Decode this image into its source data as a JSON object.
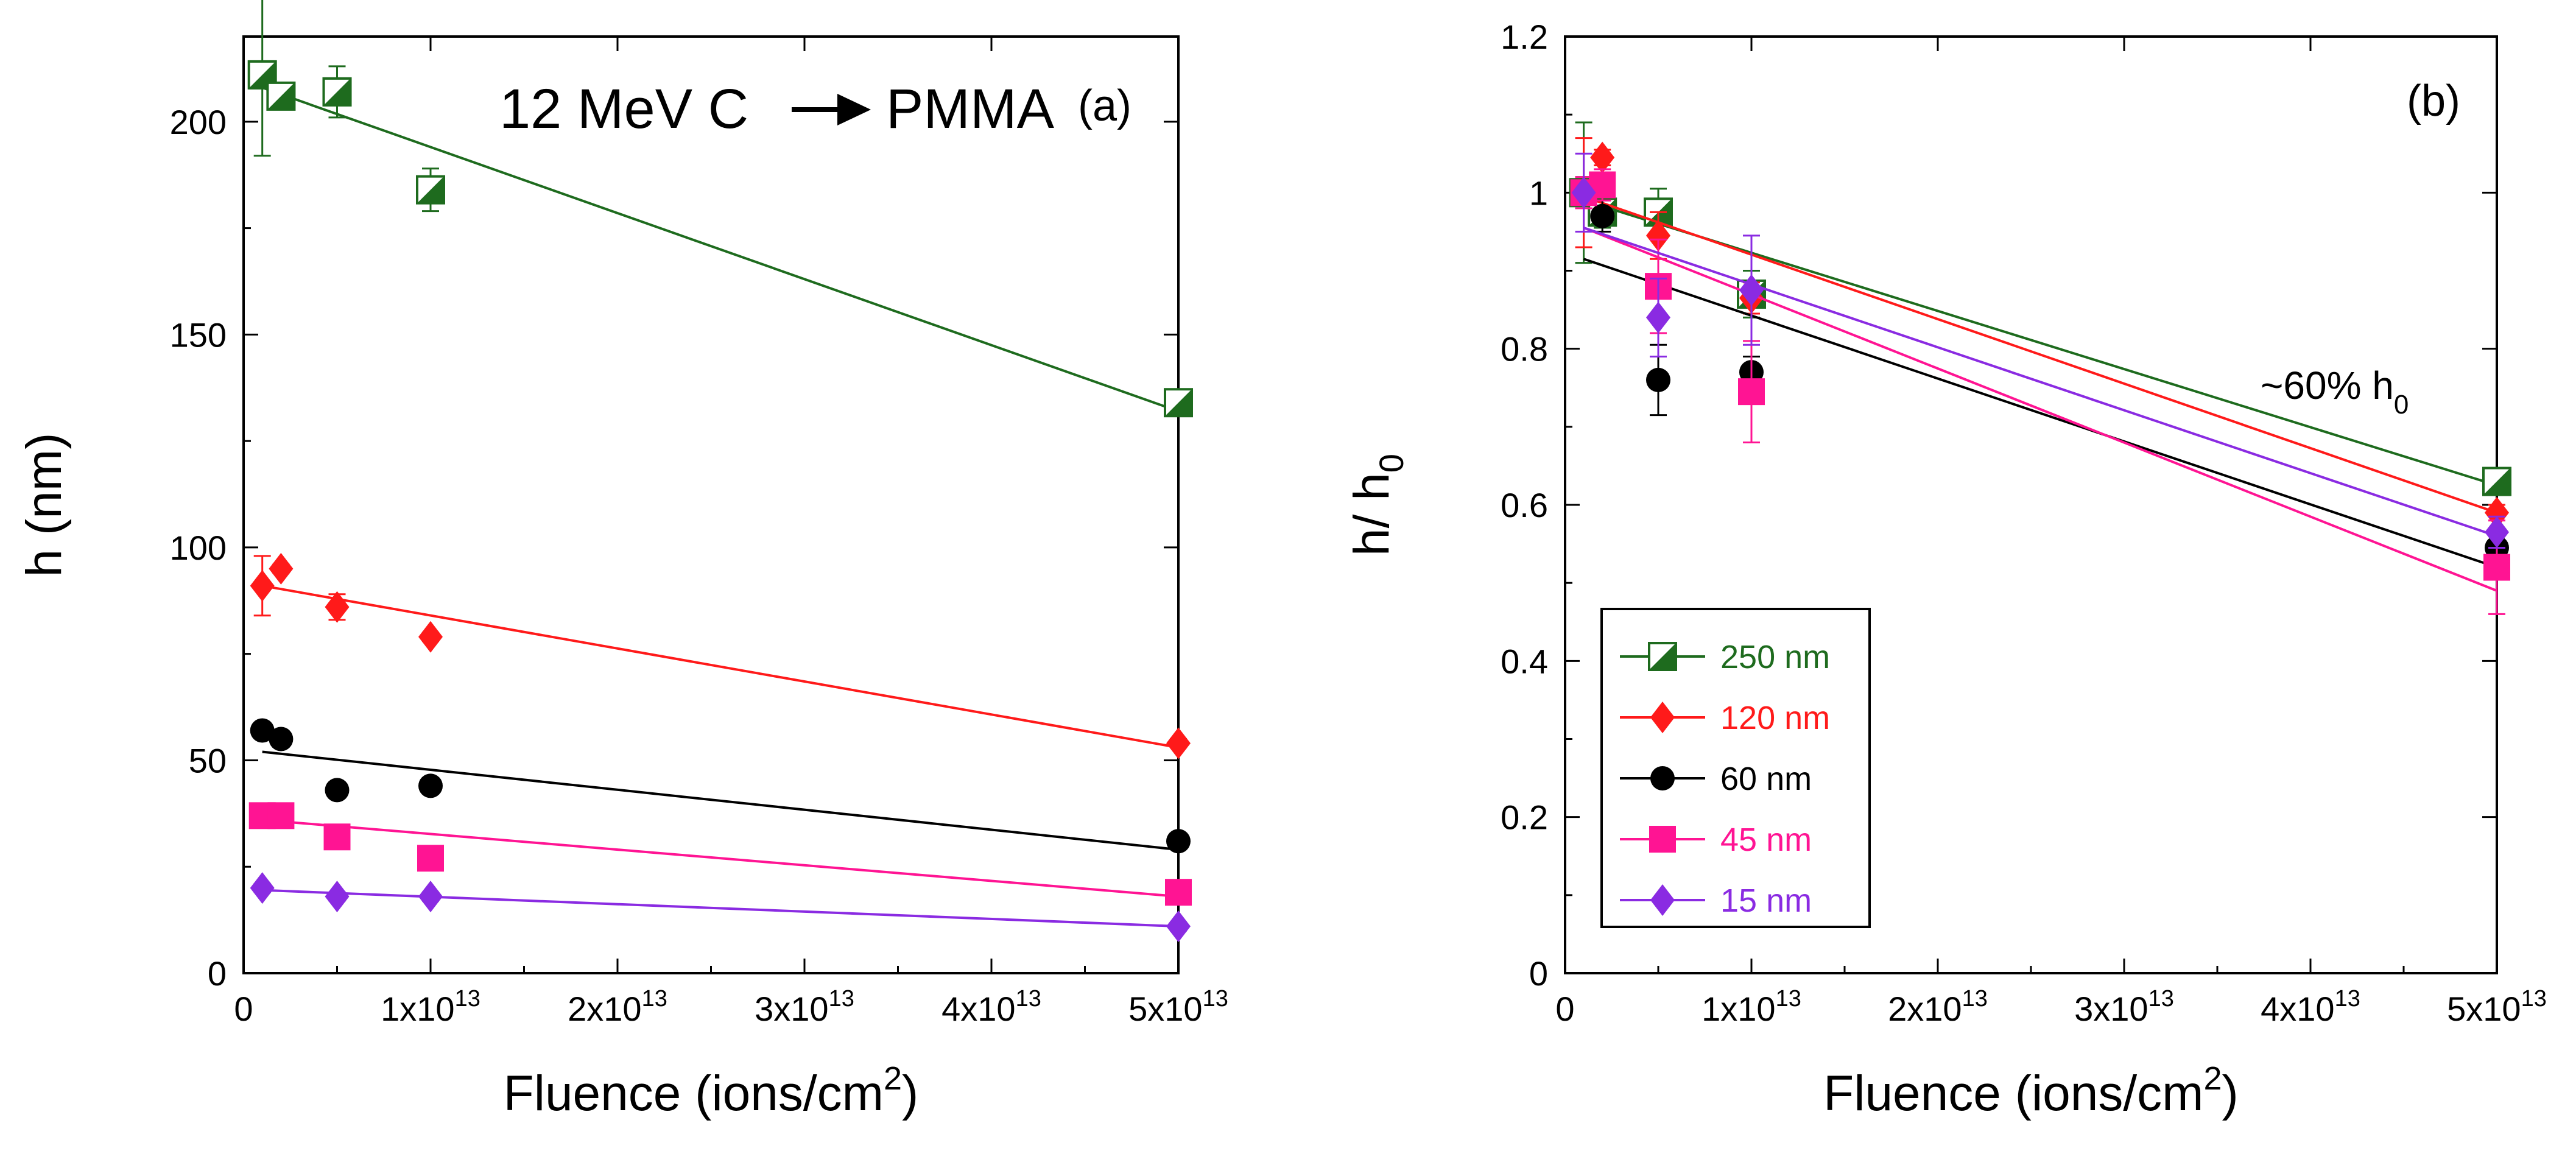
{
  "chart_data": [
    {
      "id": "a",
      "type": "scatter",
      "panel_label": "(a)",
      "annotation": {
        "prefix": "12 MeV C",
        "suffix": "PMMA"
      },
      "xlabel": {
        "text": "Fluence (ions/cm",
        "sup": "2",
        "close": ")"
      },
      "ylabel": "h (nm)",
      "xlim": [
        0,
        50000000000000.0
      ],
      "ylim": [
        0,
        220
      ],
      "xticks": [
        0,
        10000000000000.0,
        20000000000000.0,
        30000000000000.0,
        40000000000000.0,
        50000000000000.0
      ],
      "xtick_labels": [
        "0",
        "1x10^13",
        "2x10^13",
        "3x10^13",
        "4x10^13",
        "5x10^13"
      ],
      "yticks": [
        0,
        50,
        100,
        150,
        200
      ],
      "ytick_labels": [
        "0",
        "50",
        "100",
        "150",
        "200"
      ],
      "series": [
        {
          "name": "250 nm",
          "color": "#1e6b1e",
          "marker": "half-square",
          "points": [
            [
              1000000000000.0,
              211,
              19
            ],
            [
              2000000000000.0,
              206,
              2
            ],
            [
              5000000000000.0,
              207,
              6
            ],
            [
              10000000000000.0,
              184,
              5
            ],
            [
              50000000000000.0,
              134,
              1
            ]
          ],
          "fit": [
            [
              1000000000000.0,
              208
            ],
            [
              50000000000000.0,
              132
            ]
          ]
        },
        {
          "name": "120 nm",
          "color": "#ff1a1a",
          "marker": "diamond",
          "points": [
            [
              1000000000000.0,
              91,
              7
            ],
            [
              2000000000000.0,
              95,
              1
            ],
            [
              5000000000000.0,
              86,
              3
            ],
            [
              10000000000000.0,
              79,
              1
            ],
            [
              50000000000000.0,
              54,
              1
            ]
          ],
          "fit": [
            [
              1000000000000.0,
              91
            ],
            [
              50000000000000.0,
              53
            ]
          ]
        },
        {
          "name": "60 nm",
          "color": "#000000",
          "marker": "circle",
          "points": [
            [
              1000000000000.0,
              57,
              1
            ],
            [
              2000000000000.0,
              55,
              1
            ],
            [
              5000000000000.0,
              43,
              1
            ],
            [
              10000000000000.0,
              44,
              1
            ],
            [
              50000000000000.0,
              31,
              1
            ]
          ],
          "fit": [
            [
              1000000000000.0,
              52
            ],
            [
              50000000000000.0,
              29
            ]
          ]
        },
        {
          "name": "45 nm",
          "color": "#ff1493",
          "marker": "square",
          "points": [
            [
              1000000000000.0,
              37,
              1
            ],
            [
              2000000000000.0,
              37,
              1
            ],
            [
              5000000000000.0,
              32,
              1
            ],
            [
              10000000000000.0,
              27,
              1
            ],
            [
              50000000000000.0,
              19,
              1
            ]
          ],
          "fit": [
            [
              1000000000000.0,
              36
            ],
            [
              50000000000000.0,
              18
            ]
          ]
        },
        {
          "name": "15 nm",
          "color": "#8a2be2",
          "marker": "diamond",
          "points": [
            [
              1000000000000.0,
              20,
              1
            ],
            [
              5000000000000.0,
              18,
              1
            ],
            [
              10000000000000.0,
              18,
              1
            ],
            [
              50000000000000.0,
              11,
              1
            ]
          ],
          "fit": [
            [
              1000000000000.0,
              19.5
            ],
            [
              50000000000000.0,
              11
            ]
          ]
        }
      ]
    },
    {
      "id": "b",
      "type": "scatter",
      "panel_label": "(b)",
      "annotation": {
        "text": "~60% h",
        "sub": "0"
      },
      "xlabel": {
        "text": "Fluence (ions/cm",
        "sup": "2",
        "close": ")"
      },
      "ylabel": {
        "text": "h/ h",
        "sub": "0"
      },
      "xlim": [
        0,
        50000000000000.0
      ],
      "ylim": [
        0,
        1.2
      ],
      "xticks": [
        0,
        10000000000000.0,
        20000000000000.0,
        30000000000000.0,
        40000000000000.0,
        50000000000000.0
      ],
      "xtick_labels": [
        "0",
        "1x10^13",
        "2x10^13",
        "3x10^13",
        "4x10^13",
        "5x10^13"
      ],
      "yticks": [
        0,
        0.2,
        0.4,
        0.6,
        0.8,
        1.0,
        1.2
      ],
      "ytick_labels": [
        "0",
        "0.2",
        "0.4",
        "0.6",
        "0.8",
        "1",
        "1.2"
      ],
      "legend_position": "bottom-left",
      "series": [
        {
          "name": "250 nm",
          "color": "#1e6b1e",
          "marker": "half-square",
          "points": [
            [
              1000000000000.0,
              1.0,
              0.09
            ],
            [
              2000000000000.0,
              0.975,
              0.02
            ],
            [
              5000000000000.0,
              0.975,
              0.03
            ],
            [
              10000000000000.0,
              0.87,
              0.03
            ],
            [
              50000000000000.0,
              0.63,
              0.01
            ]
          ],
          "fit": [
            [
              1000000000000.0,
              0.99
            ],
            [
              50000000000000.0,
              0.625
            ]
          ]
        },
        {
          "name": "120 nm",
          "color": "#ff1a1a",
          "marker": "diamond",
          "points": [
            [
              1000000000000.0,
              1.0,
              0.07
            ],
            [
              2000000000000.0,
              1.045,
              0.01
            ],
            [
              5000000000000.0,
              0.945,
              0.03
            ],
            [
              10000000000000.0,
              0.865,
              0.02
            ],
            [
              50000000000000.0,
              0.59,
              0.01
            ]
          ],
          "fit": [
            [
              1000000000000.0,
              0.995
            ],
            [
              50000000000000.0,
              0.59
            ]
          ]
        },
        {
          "name": "60 nm",
          "color": "#000000",
          "marker": "circle",
          "points": [
            [
              1000000000000.0,
              1.0,
              0.02
            ],
            [
              2000000000000.0,
              0.97,
              0.02
            ],
            [
              5000000000000.0,
              0.76,
              0.045
            ],
            [
              10000000000000.0,
              0.77,
              0.02
            ],
            [
              50000000000000.0,
              0.545,
              0.02
            ]
          ],
          "fit": [
            [
              1000000000000.0,
              0.915
            ],
            [
              50000000000000.0,
              0.52
            ]
          ]
        },
        {
          "name": "45 nm",
          "color": "#ff1493",
          "marker": "square",
          "points": [
            [
              1000000000000.0,
              1.0,
              0.02
            ],
            [
              2000000000000.0,
              1.01,
              0.02
            ],
            [
              5000000000000.0,
              0.88,
              0.06
            ],
            [
              10000000000000.0,
              0.745,
              0.065
            ],
            [
              50000000000000.0,
              0.52,
              0.06
            ]
          ],
          "fit": [
            [
              1000000000000.0,
              0.955
            ],
            [
              50000000000000.0,
              0.49
            ]
          ]
        },
        {
          "name": "15 nm",
          "color": "#8a2be2",
          "marker": "diamond",
          "points": [
            [
              1000000000000.0,
              1.0,
              0.05
            ],
            [
              5000000000000.0,
              0.84,
              0.05
            ],
            [
              10000000000000.0,
              0.875,
              0.07
            ],
            [
              50000000000000.0,
              0.565,
              0.02
            ]
          ],
          "fit": [
            [
              1000000000000.0,
              0.955
            ],
            [
              50000000000000.0,
              0.56
            ]
          ]
        }
      ]
    }
  ]
}
